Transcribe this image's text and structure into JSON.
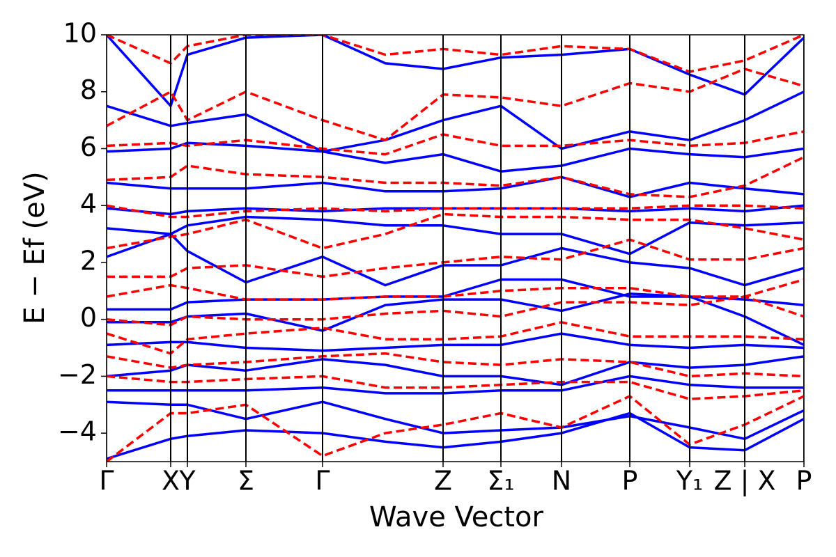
{
  "chart_data": {
    "type": "line",
    "xlabel": "Wave Vector",
    "ylabel": "E − Ef (eV)",
    "x": [
      0,
      0.92,
      1.16,
      2.0,
      3.1,
      4.0,
      4.83,
      5.66,
      6.53,
      7.51,
      8.37,
      9.16,
      10.01
    ],
    "xlim": [
      0,
      10.01
    ],
    "xticks": [
      {
        "value": 0,
        "label": "Γ"
      },
      {
        "value": 0.92,
        "label": "X"
      },
      {
        "value": 1.16,
        "label": "Y"
      },
      {
        "value": 2.0,
        "label": "Σ"
      },
      {
        "value": 3.1,
        "label": "Γ"
      },
      {
        "value": 4.83,
        "label": "Z"
      },
      {
        "value": 5.66,
        "label": "Σ₁"
      },
      {
        "value": 6.53,
        "label": "N"
      },
      {
        "value": 7.51,
        "label": "P"
      },
      {
        "value": 8.37,
        "label": "Y₁"
      },
      {
        "value": 9.16,
        "label": "Z | X"
      },
      {
        "value": 10.01,
        "label": "P"
      }
    ],
    "ylim": [
      -5,
      10
    ],
    "yticks": [
      {
        "value": -4,
        "label": "−4"
      },
      {
        "value": -2,
        "label": "−2"
      },
      0,
      2,
      4,
      6,
      8,
      10
    ],
    "series": [
      {
        "color": "#0000ff",
        "dash": false,
        "values": [
          -4.9,
          -4.2,
          -4.1,
          -3.9,
          -4.0,
          -4.3,
          -4.5,
          -4.3,
          -4.0,
          -3.3,
          -4.5,
          -4.6,
          -3.5
        ]
      },
      {
        "color": "#0000ff",
        "dash": false,
        "values": [
          -2.9,
          -3.0,
          -3.0,
          -3.5,
          -2.9,
          -3.5,
          -4.0,
          -3.9,
          -3.8,
          -3.4,
          -3.8,
          -4.2,
          -3.2
        ]
      },
      {
        "color": "#0000ff",
        "dash": false,
        "values": [
          -2.5,
          -2.5,
          -2.5,
          -2.5,
          -2.4,
          -2.6,
          -2.6,
          -2.5,
          -2.5,
          -2.0,
          -2.3,
          -2.4,
          -2.4
        ]
      },
      {
        "color": "#0000ff",
        "dash": false,
        "values": [
          -2.0,
          -1.8,
          -1.6,
          -1.8,
          -1.4,
          -1.6,
          -2.0,
          -2.0,
          -2.3,
          -1.5,
          -1.7,
          -1.6,
          -1.3
        ]
      },
      {
        "color": "#0000ff",
        "dash": false,
        "values": [
          -0.9,
          -0.8,
          -0.8,
          -1.0,
          -1.1,
          -1.0,
          -0.9,
          -0.9,
          -0.5,
          -0.9,
          -1.0,
          -0.9,
          -1.0
        ]
      },
      {
        "color": "#0000ff",
        "dash": false,
        "values": [
          -0.1,
          -0.1,
          0.1,
          0.2,
          -0.4,
          0.5,
          0.7,
          0.7,
          0.3,
          0.9,
          0.8,
          0.1,
          -0.9
        ]
      },
      {
        "color": "#0000ff",
        "dash": false,
        "values": [
          0.35,
          0.35,
          0.6,
          0.7,
          0.7,
          0.8,
          0.8,
          1.4,
          1.4,
          0.8,
          0.8,
          0.7,
          0.5
        ]
      },
      {
        "color": "#0000ff",
        "dash": false,
        "values": [
          2.2,
          3.0,
          2.4,
          1.3,
          2.2,
          1.2,
          1.9,
          1.9,
          2.5,
          2.0,
          1.8,
          1.2,
          1.8
        ]
      },
      {
        "color": "#0000ff",
        "dash": false,
        "values": [
          3.2,
          3.0,
          3.3,
          3.6,
          3.5,
          3.3,
          3.3,
          3.0,
          3.0,
          2.3,
          3.4,
          3.3,
          3.4
        ]
      },
      {
        "color": "#0000ff",
        "dash": false,
        "values": [
          3.9,
          3.7,
          3.8,
          3.9,
          3.8,
          3.9,
          3.9,
          3.9,
          3.9,
          3.8,
          3.9,
          3.8,
          4.0
        ]
      },
      {
        "color": "#0000ff",
        "dash": false,
        "values": [
          4.8,
          4.6,
          4.6,
          4.6,
          4.8,
          4.5,
          4.5,
          4.6,
          5.0,
          4.3,
          4.8,
          4.6,
          4.4
        ]
      },
      {
        "color": "#0000ff",
        "dash": false,
        "values": [
          5.9,
          6.0,
          6.2,
          6.1,
          5.9,
          5.5,
          5.8,
          5.2,
          5.4,
          6.0,
          5.8,
          5.7,
          6.0
        ]
      },
      {
        "color": "#0000ff",
        "dash": false,
        "values": [
          7.5,
          6.8,
          6.9,
          7.2,
          5.9,
          6.3,
          7.0,
          7.5,
          6.0,
          6.6,
          6.3,
          7.0,
          8.0
        ]
      },
      {
        "color": "#0000ff",
        "dash": false,
        "values": [
          10.0,
          7.5,
          9.3,
          9.9,
          10.0,
          9.0,
          8.8,
          9.2,
          9.3,
          9.5,
          8.6,
          7.9,
          9.9
        ]
      },
      {
        "color": "#ff0000",
        "dash": true,
        "values": [
          -5.0,
          -3.3,
          -3.3,
          -3.0,
          -4.8,
          -4.0,
          -3.7,
          -3.3,
          -3.8,
          -2.7,
          -4.4,
          -3.7,
          -2.7
        ]
      },
      {
        "color": "#ff0000",
        "dash": true,
        "values": [
          -2.0,
          -2.2,
          -2.2,
          -2.1,
          -2.0,
          -2.4,
          -2.4,
          -2.3,
          -2.2,
          -2.2,
          -2.8,
          -2.7,
          -2.5
        ]
      },
      {
        "color": "#ff0000",
        "dash": true,
        "values": [
          -1.3,
          -1.7,
          -1.6,
          -1.5,
          -1.3,
          -1.2,
          -1.5,
          -1.6,
          -1.4,
          -1.5,
          -2.0,
          -1.9,
          -2.0
        ]
      },
      {
        "color": "#ff0000",
        "dash": true,
        "values": [
          -0.5,
          -1.2,
          -0.7,
          -0.5,
          -0.3,
          -0.7,
          -0.7,
          -0.6,
          -0.1,
          -0.6,
          -0.6,
          -0.6,
          -0.7
        ]
      },
      {
        "color": "#ff0000",
        "dash": true,
        "values": [
          0.0,
          -0.2,
          0.1,
          0.0,
          0.0,
          0.2,
          0.3,
          0.1,
          0.6,
          0.6,
          0.5,
          0.8,
          0.1
        ]
      },
      {
        "color": "#ff0000",
        "dash": true,
        "values": [
          0.8,
          1.2,
          1.1,
          0.7,
          0.7,
          0.8,
          0.8,
          1.0,
          1.1,
          1.1,
          0.8,
          0.8,
          1.4
        ]
      },
      {
        "color": "#ff0000",
        "dash": true,
        "values": [
          1.5,
          1.5,
          1.8,
          1.9,
          1.5,
          1.8,
          2.0,
          2.2,
          2.1,
          2.8,
          2.1,
          2.1,
          2.5
        ]
      },
      {
        "color": "#ff0000",
        "dash": true,
        "values": [
          2.5,
          2.9,
          3.0,
          3.5,
          2.5,
          3.0,
          3.7,
          3.6,
          3.6,
          3.5,
          3.5,
          3.2,
          2.8
        ]
      },
      {
        "color": "#ff0000",
        "dash": true,
        "values": [
          4.0,
          3.6,
          3.6,
          3.8,
          3.9,
          3.8,
          3.9,
          3.9,
          3.9,
          3.9,
          4.0,
          4.0,
          3.9
        ]
      },
      {
        "color": "#ff0000",
        "dash": true,
        "values": [
          4.9,
          5.0,
          5.4,
          5.1,
          5.0,
          4.8,
          4.8,
          4.7,
          5.0,
          4.4,
          4.3,
          4.7,
          5.7
        ]
      },
      {
        "color": "#ff0000",
        "dash": true,
        "values": [
          6.1,
          6.2,
          6.1,
          6.3,
          6.0,
          5.8,
          6.5,
          6.1,
          6.1,
          6.3,
          6.1,
          6.2,
          6.6
        ]
      },
      {
        "color": "#ff0000",
        "dash": true,
        "values": [
          6.8,
          8.0,
          7.0,
          8.0,
          7.0,
          6.3,
          7.9,
          7.8,
          7.5,
          8.3,
          8.0,
          8.8,
          8.2
        ]
      },
      {
        "color": "#ff0000",
        "dash": true,
        "values": [
          10.0,
          9.0,
          9.6,
          10.0,
          10.0,
          9.3,
          9.5,
          9.3,
          9.6,
          9.5,
          8.7,
          9.1,
          10.0
        ]
      }
    ]
  }
}
